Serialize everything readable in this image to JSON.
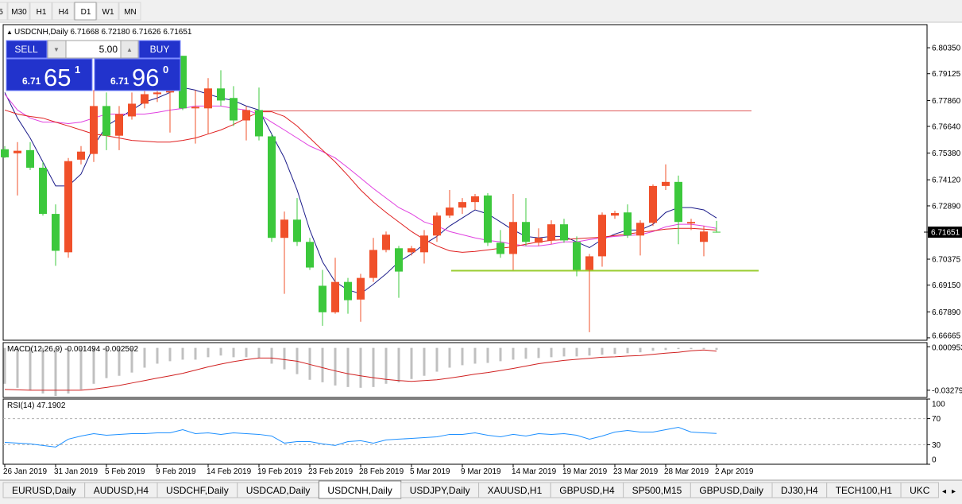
{
  "toolbar": {
    "timeframes": [
      "5",
      "M30",
      "H1",
      "H4",
      "D1",
      "W1",
      "MN"
    ],
    "active": 4
  },
  "trade_panel": {
    "sell": "SELL",
    "buy": "BUY",
    "volume": "5.00",
    "bid": {
      "pre": "6.71",
      "big": "65",
      "post": "1"
    },
    "ask": {
      "pre": "6.71",
      "big": "96",
      "post": "0"
    }
  },
  "chart_data": [
    {
      "type": "candlestick",
      "title": "USDCNH,Daily  6.71668 6.72180 6.71626 6.71651",
      "categories": [
        "26 Jan 2019",
        null,
        null,
        null,
        "31 Jan 2019",
        null,
        null,
        null,
        "5 Feb 2019",
        null,
        null,
        null,
        "9 Feb 2019",
        null,
        null,
        null,
        "14 Feb 2019",
        null,
        null,
        null,
        "19 Feb 2019",
        null,
        null,
        null,
        "23 Feb 2019",
        null,
        null,
        null,
        "28 Feb 2019",
        null,
        null,
        null,
        "5 Mar 2019",
        null,
        null,
        null,
        "9 Mar 2019",
        null,
        null,
        null,
        "14 Mar 2019",
        null,
        null,
        null,
        "19 Mar 2019",
        null,
        null,
        null,
        "23 Mar 2019",
        null,
        null,
        null,
        "28 Mar 2019",
        null,
        null,
        null,
        "2 Apr 2019"
      ],
      "open": [
        6.7556,
        6.7537,
        6.7552,
        6.7469,
        6.7251,
        6.707,
        6.7507,
        6.7534,
        6.776,
        6.762,
        6.7711,
        6.7771,
        6.7816,
        6.7824,
        6.7997,
        6.7749,
        6.7749,
        6.7843,
        6.7798,
        6.7692,
        6.7741,
        6.7617,
        6.7138,
        6.7224,
        6.7119,
        6.6912,
        6.6787,
        6.693,
        6.6847,
        6.6949,
        6.7081,
        6.7089,
        6.707,
        6.707,
        6.7149,
        6.7243,
        6.7281,
        6.7307,
        6.7338,
        6.7115,
        6.7062,
        6.7213,
        6.7115,
        6.7126,
        6.7202,
        6.7119,
        6.6987,
        6.7051,
        6.7243,
        6.7258,
        6.7149,
        6.7209,
        6.7383,
        6.7402,
        6.7206,
        6.7119,
        6.71668
      ],
      "high": [
        6.7571,
        6.759,
        6.759,
        6.7496,
        6.7296,
        6.7515,
        6.7571,
        6.7835,
        6.7824,
        6.776,
        6.7824,
        6.7862,
        6.788,
        6.7892,
        6.7997,
        6.7835,
        6.7892,
        6.7929,
        6.7854,
        6.776,
        6.7847,
        6.7628,
        6.7262,
        6.7326,
        6.7138,
        6.6987,
        6.7044,
        6.6949,
        6.6968,
        6.7138,
        6.7168,
        6.71,
        6.71,
        6.7175,
        6.7258,
        6.7364,
        6.7326,
        6.7345,
        6.7349,
        6.7175,
        6.7345,
        6.7326,
        6.7183,
        6.7221,
        6.7228,
        6.7145,
        6.7062,
        6.7258,
        6.7266,
        6.7296,
        6.7221,
        6.739,
        6.7485,
        6.7432,
        6.7228,
        6.7194,
        6.7218
      ],
      "low": [
        6.7515,
        6.7338,
        6.7458,
        6.7243,
        6.7006,
        6.7044,
        6.7485,
        6.7496,
        6.7552,
        6.7552,
        6.7696,
        6.7749,
        6.7779,
        6.7635,
        6.7741,
        6.7583,
        6.7628,
        6.776,
        6.7666,
        6.7598,
        6.7598,
        6.7119,
        6.6874,
        6.71,
        6.6987,
        6.6723,
        6.678,
        6.678,
        6.6742,
        6.693,
        6.707,
        6.6855,
        6.7055,
        6.7017,
        6.7119,
        6.7232,
        6.7251,
        6.727,
        6.71,
        6.7044,
        6.6987,
        6.71,
        6.71,
        6.7108,
        6.7115,
        6.6957,
        6.6693,
        6.7002,
        6.7228,
        6.7138,
        6.7055,
        6.7194,
        6.7364,
        6.7108,
        6.7175,
        6.7051,
        6.71626
      ],
      "close": [
        6.7518,
        6.7549,
        6.7469,
        6.7251,
        6.7077,
        6.75,
        6.7545,
        6.776,
        6.762,
        6.7722,
        6.7771,
        6.7816,
        6.7824,
        6.7835,
        6.7749,
        6.7756,
        6.7843,
        6.7786,
        6.7692,
        6.7741,
        6.7617,
        6.7138,
        6.7224,
        6.7119,
        6.6998,
        6.6787,
        6.693,
        6.6844,
        6.6949,
        6.7081,
        6.7153,
        6.6979,
        6.7089,
        6.7149,
        6.7243,
        6.7281,
        6.7307,
        6.7334,
        6.7115,
        6.7062,
        6.7213,
        6.7119,
        6.7138,
        6.7202,
        6.7126,
        6.6987,
        6.7051,
        6.7247,
        6.7255,
        6.7149,
        6.7209,
        6.7383,
        6.7402,
        6.7213,
        6.7213,
        6.7168,
        6.71651
      ],
      "up_color": "#f0502a",
      "down_color": "#3cc83c",
      "lines": [
        {
          "color": "#1c1c8a",
          "values": [
            6.7824,
            6.7703,
            6.7609,
            6.7496,
            6.7383,
            6.7383,
            6.7439,
            6.7571,
            6.7666,
            6.7703,
            6.7741,
            6.7779,
            6.7798,
            6.7824,
            6.7847,
            6.7835,
            6.7816,
            6.7798,
            6.7786,
            6.776,
            6.7741,
            6.7628,
            6.7515,
            6.7364,
            6.7175,
            6.7025,
            6.693,
            6.6893,
            6.6874,
            6.6919,
            6.6968,
            6.7025,
            6.7062,
            6.7108,
            6.7145,
            6.7194,
            6.7232,
            6.727,
            6.7251,
            6.7213,
            6.7175,
            6.7145,
            6.7138,
            6.7145,
            6.7145,
            6.7119,
            6.7092,
            6.713,
            6.7156,
            6.7175,
            6.7175,
            6.7202,
            6.7258,
            6.7281,
            6.7281,
            6.727,
            6.7232
          ]
        },
        {
          "color": "#e040e0",
          "values": [
            6.7816,
            6.7741,
            6.7703,
            6.7684,
            6.7684,
            6.7677,
            6.7684,
            6.7703,
            6.7722,
            6.7722,
            6.7722,
            6.7722,
            6.773,
            6.7741,
            6.7749,
            6.776,
            6.776,
            6.776,
            6.7749,
            6.7741,
            6.7722,
            6.7684,
            6.7647,
            6.7609,
            6.7571,
            6.7545,
            6.7515,
            6.7469,
            6.742,
            6.7371,
            6.7326,
            6.7281,
            6.7251,
            6.7213,
            6.7194,
            6.7168,
            6.7153,
            6.7138,
            6.7126,
            6.7119,
            6.7108,
            6.71,
            6.71,
            6.7108,
            6.7119,
            6.7119,
            6.713,
            6.7138,
            6.7145,
            6.7149,
            6.7153,
            6.7168,
            6.719,
            6.7202,
            6.7202,
            6.7194,
            6.7183
          ]
        },
        {
          "color": "#e02020",
          "values": [
            6.7741,
            6.7722,
            6.7711,
            6.7703,
            6.7684,
            6.7666,
            6.7647,
            6.7628,
            6.762,
            6.7609,
            6.7598,
            6.7594,
            6.759,
            6.759,
            6.7598,
            6.7609,
            6.7628,
            6.7647,
            6.7673,
            6.7703,
            6.7733,
            6.7733,
            6.7711,
            6.7666,
            6.7609,
            6.7552,
            6.7496,
            6.7432,
            6.7364,
            6.7307,
            6.7258,
            6.7213,
            6.7168,
            6.713,
            6.71,
            6.7077,
            6.707,
            6.7074,
            6.7081,
            6.7089,
            6.7096,
            6.7108,
            6.7119,
            6.7126,
            6.713,
            6.7134,
            6.7138,
            6.7141,
            6.7149,
            6.7156,
            6.7164,
            6.7171,
            6.7179,
            6.7183,
            6.7183,
            6.7179,
            6.7175
          ]
        }
      ],
      "levels": [
        {
          "value": 6.7737,
          "color": "#e05a5a"
        },
        {
          "value": 6.6983,
          "color": "#9acd32"
        }
      ],
      "current_price": 6.71651,
      "ylim": [
        6.6655,
        6.8144
      ],
      "yticks": [
        {
          "value": 6.8035,
          "label": "6.80350"
        },
        6.79125,
        {
          "value": 6.7786,
          "label": "6.77860"
        },
        {
          "value": 6.7664,
          "label": "6.76640"
        },
        {
          "value": 6.7538,
          "label": "6.75380"
        },
        {
          "value": 6.7412,
          "label": "6.74120"
        },
        {
          "value": 6.7289,
          "label": "6.72890"
        },
        6.70375,
        {
          "value": 6.6915,
          "label": "6.69150"
        },
        {
          "value": 6.6789,
          "label": "6.67890"
        },
        6.66665
      ]
    },
    {
      "type": "macd",
      "title": "MACD(12,26,9) -0.001494 -0.002502",
      "series": [
        {
          "type": "bar",
          "color": "#c0c0c0",
          "values": [
            -0.0278,
            -0.0309,
            -0.0328,
            -0.0353,
            -0.0372,
            -0.0353,
            -0.0322,
            -0.0278,
            -0.0234,
            -0.0216,
            -0.0191,
            -0.0153,
            -0.0122,
            -0.0103,
            -0.0091,
            -0.0091,
            -0.0072,
            -0.0059,
            -0.0072,
            -0.0072,
            -0.0078,
            -0.0122,
            -0.0166,
            -0.0203,
            -0.0247,
            -0.0266,
            -0.0291,
            -0.0303,
            -0.0309,
            -0.0303,
            -0.0278,
            -0.0266,
            -0.0241,
            -0.0216,
            -0.0184,
            -0.0153,
            -0.0134,
            -0.0122,
            -0.0116,
            -0.0103,
            -0.0091,
            -0.0084,
            -0.0078,
            -0.0072,
            -0.0066,
            -0.0066,
            -0.0059,
            -0.0053,
            -0.0047,
            -0.0041,
            -0.0034,
            -0.0022,
            -0.0016,
            -0.0009,
            -0.0009,
            -0.0009,
            -0.001494
          ]
        },
        {
          "type": "line",
          "color": "#d02020",
          "values": [
            -0.0322,
            -0.0325,
            -0.0328,
            -0.0328,
            -0.0328,
            -0.0328,
            -0.0328,
            -0.0319,
            -0.0306,
            -0.0291,
            -0.0272,
            -0.0253,
            -0.0234,
            -0.0216,
            -0.0197,
            -0.0172,
            -0.0147,
            -0.0125,
            -0.0106,
            -0.0091,
            -0.0078,
            -0.0078,
            -0.0091,
            -0.0103,
            -0.0128,
            -0.0153,
            -0.0178,
            -0.02,
            -0.0216,
            -0.0231,
            -0.0244,
            -0.0253,
            -0.0259,
            -0.0253,
            -0.0247,
            -0.0234,
            -0.0219,
            -0.0203,
            -0.0191,
            -0.0175,
            -0.0159,
            -0.0141,
            -0.0122,
            -0.0109,
            -0.0097,
            -0.0088,
            -0.0081,
            -0.0072,
            -0.0069,
            -0.0063,
            -0.0059,
            -0.005,
            -0.0041,
            -0.0034,
            -0.0022,
            -0.0016,
            -0.002502
          ]
        }
      ],
      "ylim": [
        -0.0384,
        0.0041
      ],
      "yticks": [
        0.000953,
        -0.032793
      ]
    },
    {
      "type": "line",
      "title": "RSI(14) 47.1902",
      "series": [
        {
          "color": "#1e90ff",
          "values": [
            33.6,
            32.4,
            31.2,
            28.8,
            26.4,
            38.5,
            43.3,
            47.0,
            44.5,
            45.8,
            47.0,
            47.0,
            48.2,
            48.2,
            53.0,
            47.0,
            48.2,
            45.8,
            48.2,
            47.0,
            45.8,
            43.3,
            32.4,
            34.8,
            34.8,
            31.2,
            28.8,
            34.8,
            36.1,
            32.4,
            37.3,
            38.5,
            39.7,
            40.9,
            42.1,
            45.8,
            45.8,
            48.2,
            44.5,
            42.1,
            45.8,
            43.3,
            47.0,
            45.8,
            47.0,
            44.5,
            38.5,
            43.3,
            49.4,
            51.8,
            49.4,
            49.4,
            53.0,
            56.7,
            49.4,
            48.2,
            47.1902
          ]
        }
      ],
      "levels": [
        70,
        30
      ],
      "ylim": [
        0,
        100
      ],
      "yticks": [
        100,
        70,
        30,
        0
      ]
    }
  ],
  "tabs": {
    "items": [
      "EURUSD,Daily",
      "AUDUSD,H4",
      "USDCHF,Daily",
      "USDCAD,Daily",
      "USDCNH,Daily",
      "USDJPY,Daily",
      "XAUUSD,H1",
      "GBPUSD,H4",
      "SP500,M15",
      "GBPUSD,Daily",
      "DJ30,H4",
      "TECH100,H1",
      "UKC"
    ],
    "active": 4
  }
}
